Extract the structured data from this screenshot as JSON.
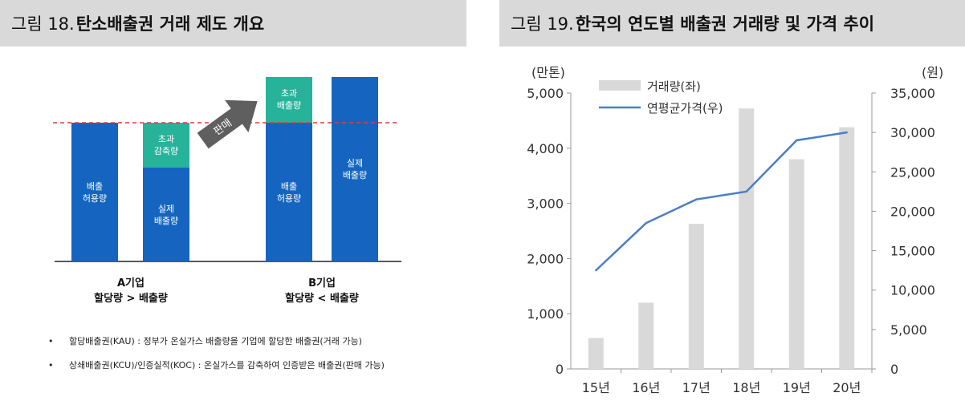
{
  "fig18": {
    "number": "그림 18.",
    "title": "탄소배출권 거래 제도 개요",
    "arrow_label": "판매",
    "company_a": {
      "name": "A기업",
      "relation": "할당량 > 배출량",
      "allowance_label": [
        "배출",
        "허용량"
      ],
      "excess_label": [
        "초과",
        "감축량"
      ],
      "actual_label": [
        "실제",
        "배출량"
      ]
    },
    "company_b": {
      "name": "B기업",
      "relation": "할당량 < 배출량",
      "excess_label": [
        "초과",
        "배출량"
      ],
      "allowance_label": [
        "배출",
        "허용량"
      ],
      "actual_label": [
        "실제",
        "배출량"
      ]
    },
    "bullets": [
      "할당배출권(KAU) : 정부가 온실가스 배출량을 기업에 할당한 배출권(거래 가능)",
      "상쇄배출권(KCU)/인증실적(KOC) : 온실가스를 감축하여 인증받은 배출권(판매 가능)"
    ],
    "colors": {
      "blue": "#1565c0",
      "teal": "#26b39a",
      "arrow": "#5f5f5f",
      "dashed": "#e53935"
    }
  },
  "fig19": {
    "number": "그림 19.",
    "title": "한국의 연도별 배출권 거래량 및 가격 추이",
    "colors": {
      "bar": "#d9d9d9",
      "line": "#4a7ec7"
    }
  },
  "chart_data": {
    "type": "bar",
    "title": "한국의 연도별 배출권 거래량 및 가격 추이",
    "categories": [
      "15년",
      "16년",
      "17년",
      "18년",
      "19년",
      "20년"
    ],
    "series": [
      {
        "name": "거래량(좌)",
        "type": "bar",
        "axis": "left",
        "values": [
          560,
          1200,
          2630,
          4720,
          3800,
          4380
        ]
      },
      {
        "name": "연평균가격(우)",
        "type": "line",
        "axis": "right",
        "values": [
          12500,
          18500,
          21500,
          22500,
          29000,
          30000
        ]
      }
    ],
    "y_left": {
      "unit": "(만톤)",
      "range": [
        0,
        5000
      ],
      "ticks": [
        0,
        1000,
        2000,
        3000,
        4000,
        5000
      ],
      "tick_labels": [
        "0",
        "1,000",
        "2,000",
        "3,000",
        "4,000",
        "5,000"
      ]
    },
    "y_right": {
      "unit": "(원)",
      "range": [
        0,
        35000
      ],
      "ticks": [
        0,
        5000,
        10000,
        15000,
        20000,
        25000,
        30000,
        35000
      ],
      "tick_labels": [
        "0",
        "5,000",
        "10,000",
        "15,000",
        "20,000",
        "25,000",
        "30,000",
        "35,000"
      ]
    },
    "grid": false,
    "legend": "top-left"
  }
}
